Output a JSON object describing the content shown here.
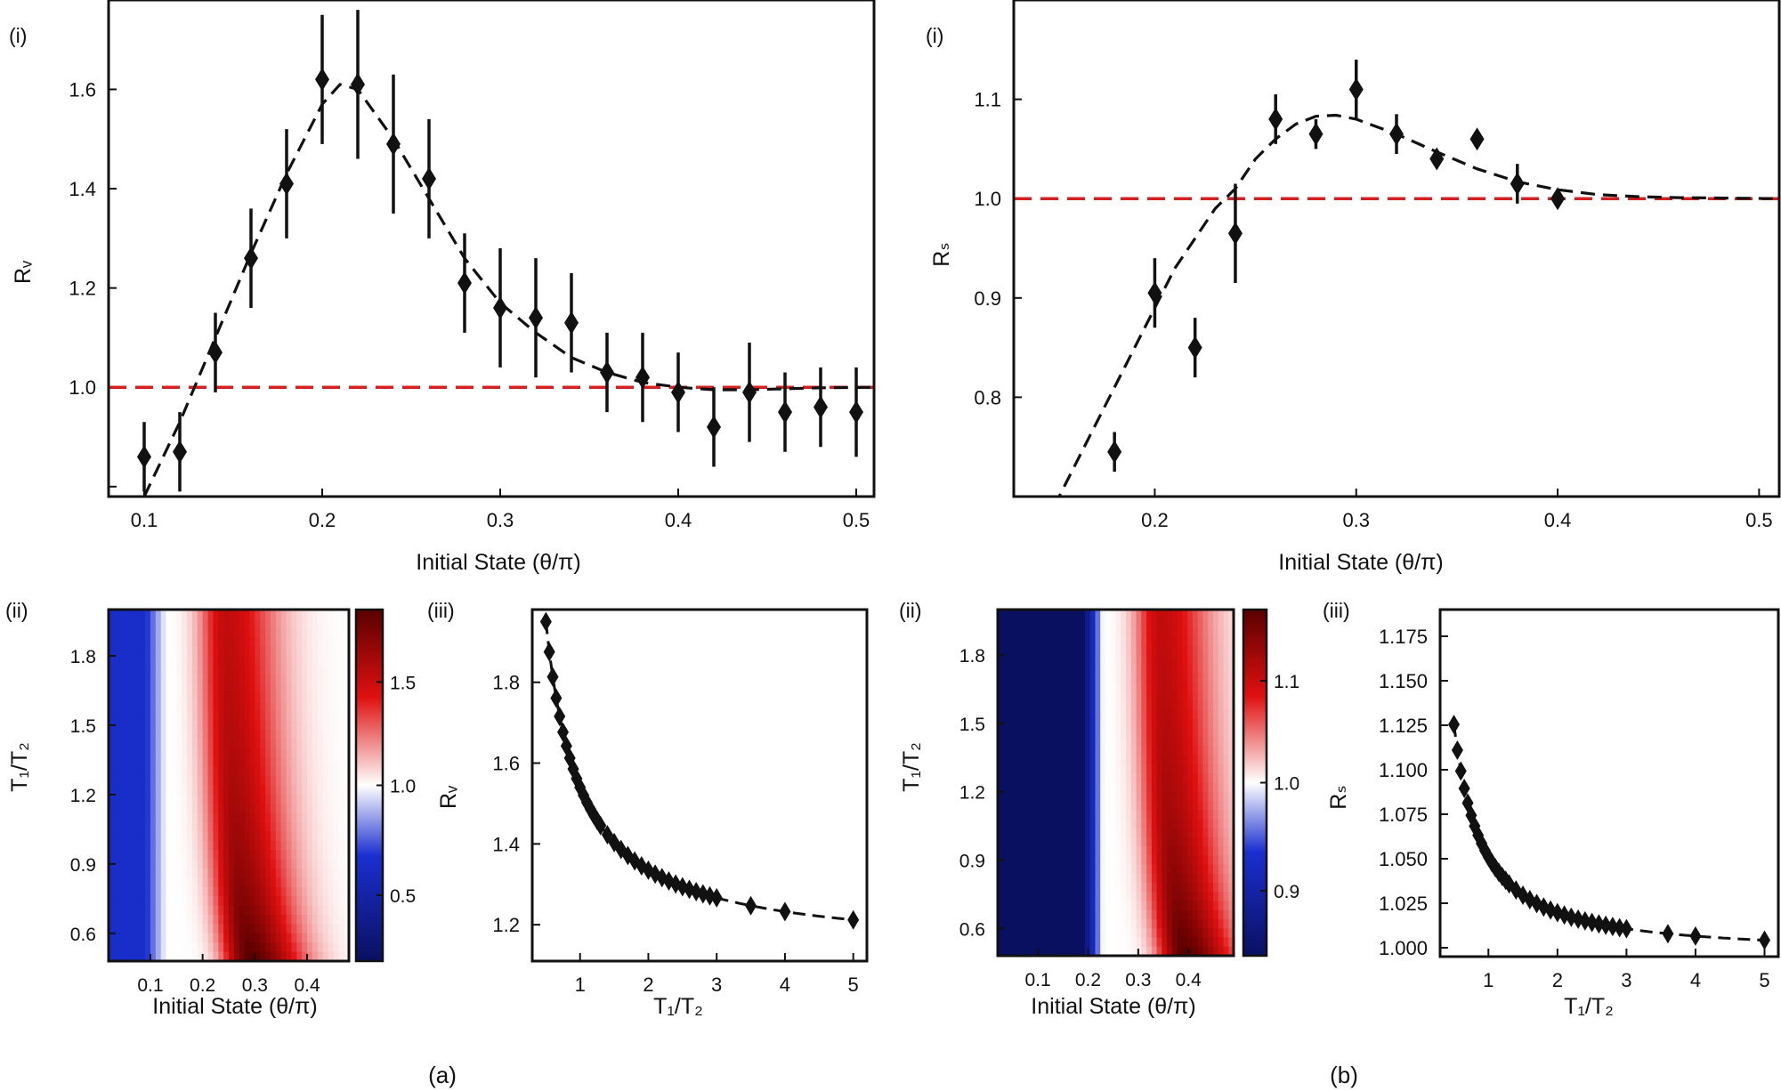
{
  "chart_data": [
    {
      "id": "a-i",
      "panel_label": "(i)",
      "type": "scatter",
      "xlabel": "Initial State (θ/π)",
      "ylabel": "Rᵥ",
      "xlim": [
        0.08,
        0.51
      ],
      "ylim": [
        0.78,
        1.78
      ],
      "xticks": [
        "0.1",
        "0.2",
        "0.3",
        "0.4",
        "0.5"
      ],
      "xtick_values": [
        0.1,
        0.2,
        0.3,
        0.4,
        0.5
      ],
      "yticks": [
        "",
        "1.0",
        "1.2",
        "1.4",
        "1.6"
      ],
      "ytick_values": [
        0.8,
        1.0,
        1.2,
        1.4,
        1.6
      ],
      "reference_line": 1.0,
      "points": [
        {
          "x": 0.1,
          "y": 0.86,
          "err": 0.07
        },
        {
          "x": 0.12,
          "y": 0.87,
          "err": 0.08
        },
        {
          "x": 0.14,
          "y": 1.07,
          "err": 0.08
        },
        {
          "x": 0.16,
          "y": 1.26,
          "err": 0.1
        },
        {
          "x": 0.18,
          "y": 1.41,
          "err": 0.11
        },
        {
          "x": 0.2,
          "y": 1.62,
          "err": 0.13
        },
        {
          "x": 0.22,
          "y": 1.61,
          "err": 0.15
        },
        {
          "x": 0.24,
          "y": 1.49,
          "err": 0.14
        },
        {
          "x": 0.26,
          "y": 1.42,
          "err": 0.12
        },
        {
          "x": 0.28,
          "y": 1.21,
          "err": 0.1
        },
        {
          "x": 0.3,
          "y": 1.16,
          "err": 0.12
        },
        {
          "x": 0.32,
          "y": 1.14,
          "err": 0.12
        },
        {
          "x": 0.34,
          "y": 1.13,
          "err": 0.1
        },
        {
          "x": 0.36,
          "y": 1.03,
          "err": 0.08
        },
        {
          "x": 0.38,
          "y": 1.02,
          "err": 0.09
        },
        {
          "x": 0.4,
          "y": 0.99,
          "err": 0.08
        },
        {
          "x": 0.42,
          "y": 0.92,
          "err": 0.08
        },
        {
          "x": 0.44,
          "y": 0.99,
          "err": 0.1
        },
        {
          "x": 0.46,
          "y": 0.95,
          "err": 0.08
        },
        {
          "x": 0.48,
          "y": 0.96,
          "err": 0.08
        },
        {
          "x": 0.5,
          "y": 0.95,
          "err": 0.09
        }
      ],
      "fit": [
        [
          0.1,
          0.78
        ],
        [
          0.12,
          0.93
        ],
        [
          0.14,
          1.1
        ],
        [
          0.16,
          1.27
        ],
        [
          0.18,
          1.43
        ],
        [
          0.2,
          1.57
        ],
        [
          0.21,
          1.61
        ],
        [
          0.22,
          1.6
        ],
        [
          0.24,
          1.5
        ],
        [
          0.26,
          1.38
        ],
        [
          0.28,
          1.26
        ],
        [
          0.3,
          1.17
        ],
        [
          0.32,
          1.11
        ],
        [
          0.34,
          1.06
        ],
        [
          0.36,
          1.03
        ],
        [
          0.38,
          1.01
        ],
        [
          0.4,
          1.0
        ],
        [
          0.42,
          0.995
        ],
        [
          0.44,
          0.995
        ],
        [
          0.46,
          0.997
        ],
        [
          0.48,
          0.999
        ],
        [
          0.51,
          1.0
        ]
      ]
    },
    {
      "id": "b-i",
      "panel_label": "(i)",
      "type": "scatter",
      "xlabel": "Initial State (θ/π)",
      "ylabel": "Rₛ",
      "xlim": [
        0.13,
        0.51
      ],
      "ylim": [
        0.7,
        1.2
      ],
      "xticks": [
        "0.2",
        "0.3",
        "0.4",
        "0.5"
      ],
      "xtick_values": [
        0.2,
        0.3,
        0.4,
        0.5
      ],
      "yticks": [
        "0.8",
        "0.9",
        "1.0",
        "1.1"
      ],
      "ytick_values": [
        0.8,
        0.9,
        1.0,
        1.1
      ],
      "reference_line": 1.0,
      "points": [
        {
          "x": 0.18,
          "y": 0.745,
          "err": 0.02
        },
        {
          "x": 0.2,
          "y": 0.905,
          "err": 0.035
        },
        {
          "x": 0.22,
          "y": 0.85,
          "err": 0.03
        },
        {
          "x": 0.24,
          "y": 0.965,
          "err": 0.05
        },
        {
          "x": 0.26,
          "y": 1.08,
          "err": 0.025
        },
        {
          "x": 0.28,
          "y": 1.065,
          "err": 0.015
        },
        {
          "x": 0.3,
          "y": 1.11,
          "err": 0.03
        },
        {
          "x": 0.32,
          "y": 1.065,
          "err": 0.02
        },
        {
          "x": 0.34,
          "y": 1.04,
          "err": 0.005
        },
        {
          "x": 0.36,
          "y": 1.06,
          "err": 0.005
        },
        {
          "x": 0.38,
          "y": 1.015,
          "err": 0.02
        },
        {
          "x": 0.4,
          "y": 1.0,
          "err": 0.005
        }
      ],
      "fit": [
        [
          0.15,
          0.69
        ],
        [
          0.17,
          0.77
        ],
        [
          0.19,
          0.85
        ],
        [
          0.21,
          0.93
        ],
        [
          0.23,
          0.99
        ],
        [
          0.24,
          1.01
        ],
        [
          0.25,
          1.04
        ],
        [
          0.26,
          1.06
        ],
        [
          0.27,
          1.075
        ],
        [
          0.28,
          1.083
        ],
        [
          0.29,
          1.084
        ],
        [
          0.3,
          1.08
        ],
        [
          0.32,
          1.065
        ],
        [
          0.34,
          1.047
        ],
        [
          0.36,
          1.03
        ],
        [
          0.38,
          1.017
        ],
        [
          0.4,
          1.009
        ],
        [
          0.42,
          1.004
        ],
        [
          0.44,
          1.002
        ],
        [
          0.46,
          1.001
        ],
        [
          0.51,
          1.0
        ]
      ]
    },
    {
      "id": "a-ii",
      "panel_label": "(ii)",
      "type": "heatmap",
      "xlabel": "Initial State (θ/π)",
      "ylabel": "T₁/T₂",
      "xticks": [
        "0.1",
        "0.2",
        "0.3",
        "0.4"
      ],
      "xtick_values": [
        0.1,
        0.2,
        0.3,
        0.4
      ],
      "xlim": [
        0.02,
        0.48
      ],
      "yticks": [
        "0.6",
        "0.9",
        "1.2",
        "1.5",
        "1.8"
      ],
      "ytick_values": [
        0.6,
        0.9,
        1.2,
        1.5,
        1.8
      ],
      "ylim": [
        0.48,
        2.0
      ],
      "colorbar_ticks": [
        "0.5",
        "1.0",
        "1.5"
      ],
      "colorbar_values": [
        0.5,
        1.0,
        1.5
      ],
      "colorbar_range": [
        0.2,
        1.85
      ],
      "value_floor": 0.65,
      "crossover": 0.13
    },
    {
      "id": "a-iii",
      "panel_label": "(iii)",
      "type": "scatter",
      "xlabel": "T₁/T₂",
      "ylabel": "Rᵥ",
      "xlim": [
        0.3,
        5.2
      ],
      "ylim": [
        1.11,
        1.98
      ],
      "xticks": [
        "1",
        "2",
        "3",
        "4",
        "5"
      ],
      "xtick_values": [
        1,
        2,
        3,
        4,
        5
      ],
      "yticks": [
        "1.2",
        "1.4",
        "1.6",
        "1.8"
      ],
      "ytick_values": [
        1.2,
        1.4,
        1.6,
        1.8
      ],
      "curve": {
        "a": 1.13,
        "b": 0.41,
        "p": 1.0
      },
      "x_samples": [
        0.5,
        0.55,
        0.6,
        0.65,
        0.7,
        0.75,
        0.8,
        0.85,
        0.9,
        0.95,
        1.0,
        1.05,
        1.1,
        1.15,
        1.2,
        1.25,
        1.3,
        1.4,
        1.5,
        1.6,
        1.7,
        1.8,
        1.9,
        2.0,
        2.1,
        2.2,
        2.3,
        2.4,
        2.5,
        2.6,
        2.7,
        2.8,
        2.9,
        3.0,
        3.5,
        4.0,
        5.0
      ]
    },
    {
      "id": "b-ii",
      "panel_label": "(ii)",
      "type": "heatmap",
      "xlabel": "Initial State (θ/π)",
      "ylabel": "T₁/T₂",
      "xticks": [
        "0.1",
        "0.2",
        "0.3",
        "0.4"
      ],
      "xtick_values": [
        0.1,
        0.2,
        0.3,
        0.4
      ],
      "xlim": [
        0.02,
        0.49
      ],
      "yticks": [
        "0.6",
        "0.9",
        "1.2",
        "1.5",
        "1.8"
      ],
      "ytick_values": [
        0.6,
        0.9,
        1.2,
        1.5,
        1.8
      ],
      "ylim": [
        0.48,
        2.0
      ],
      "colorbar_ticks": [
        "0.9",
        "1.0",
        "1.1"
      ],
      "colorbar_values": [
        0.9,
        1.0,
        1.1
      ],
      "colorbar_range": [
        0.84,
        1.17
      ],
      "value_floor": 0.84,
      "crossover": 0.23
    },
    {
      "id": "b-iii",
      "panel_label": "(iii)",
      "type": "scatter",
      "xlabel": "T₁/T₂",
      "ylabel": "Rₛ",
      "xlim": [
        0.3,
        5.2
      ],
      "ylim": [
        0.995,
        1.19
      ],
      "xticks": [
        "1",
        "2",
        "3",
        "4",
        "5"
      ],
      "xtick_values": [
        1,
        2,
        3,
        4,
        5
      ],
      "yticks": [
        "1.000",
        "1.025",
        "1.050",
        "1.075",
        "1.100",
        "1.125",
        "1.150",
        "1.175"
      ],
      "ytick_values": [
        1.0,
        1.025,
        1.05,
        1.075,
        1.1,
        1.125,
        1.15,
        1.175
      ],
      "curve": {
        "a": 0.997,
        "b": 0.054,
        "p": 1.25
      },
      "x_samples": [
        0.5,
        0.55,
        0.6,
        0.65,
        0.7,
        0.75,
        0.8,
        0.85,
        0.9,
        0.95,
        1.0,
        1.05,
        1.1,
        1.15,
        1.2,
        1.25,
        1.3,
        1.4,
        1.5,
        1.6,
        1.7,
        1.8,
        1.9,
        2.0,
        2.1,
        2.2,
        2.3,
        2.4,
        2.5,
        2.6,
        2.7,
        2.8,
        2.9,
        3.0,
        3.6,
        4.0,
        5.0
      ]
    }
  ],
  "captions": {
    "a": "(a)",
    "b": "(b)"
  },
  "colors": {
    "reference": "#d42020",
    "marker": "#111111",
    "fit": "#111111",
    "cmap_low": "#0a1060",
    "cmap_mid_low": "#1a2fd0",
    "cmap_mid": "#ffffff",
    "cmap_mid_high": "#e01010",
    "cmap_high": "#5a0000"
  }
}
